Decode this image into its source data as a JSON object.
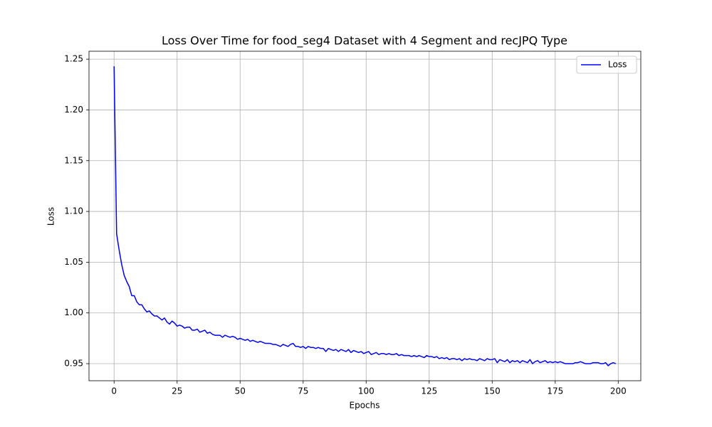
{
  "chart_data": {
    "type": "line",
    "title": "Loss Over Time for food_seg4 Dataset with 4 Segment and recJPQ Type",
    "xlabel": "Epochs",
    "ylabel": "Loss",
    "x": [
      0,
      1,
      2,
      3,
      4,
      5,
      6,
      7,
      8,
      9,
      10,
      11,
      12,
      13,
      14,
      15,
      16,
      17,
      18,
      19,
      20,
      21,
      22,
      23,
      24,
      25,
      26,
      27,
      28,
      29,
      30,
      31,
      32,
      33,
      34,
      35,
      36,
      37,
      38,
      39,
      40,
      41,
      42,
      43,
      44,
      45,
      46,
      47,
      48,
      49,
      50,
      51,
      52,
      53,
      54,
      55,
      56,
      57,
      58,
      59,
      60,
      61,
      62,
      63,
      64,
      65,
      66,
      67,
      68,
      69,
      70,
      71,
      72,
      73,
      74,
      75,
      76,
      77,
      78,
      79,
      80,
      81,
      82,
      83,
      84,
      85,
      86,
      87,
      88,
      89,
      90,
      91,
      92,
      93,
      94,
      95,
      96,
      97,
      98,
      99,
      100,
      101,
      102,
      103,
      104,
      105,
      106,
      107,
      108,
      109,
      110,
      111,
      112,
      113,
      114,
      115,
      116,
      117,
      118,
      119,
      120,
      121,
      122,
      123,
      124,
      125,
      126,
      127,
      128,
      129,
      130,
      131,
      132,
      133,
      134,
      135,
      136,
      137,
      138,
      139,
      140,
      141,
      142,
      143,
      144,
      145,
      146,
      147,
      148,
      149,
      150,
      151,
      152,
      153,
      154,
      155,
      156,
      157,
      158,
      159,
      160,
      161,
      162,
      163,
      164,
      165,
      166,
      167,
      168,
      169,
      170,
      171,
      172,
      173,
      174,
      175,
      176,
      177,
      178,
      179,
      180,
      181,
      182,
      183,
      184,
      185,
      186,
      187,
      188,
      189,
      190,
      191,
      192,
      193,
      194,
      195,
      196,
      197,
      198,
      199
    ],
    "series": [
      {
        "name": "Loss",
        "color": "#0000ff",
        "values": [
          1.243,
          1.078,
          1.062,
          1.048,
          1.037,
          1.031,
          1.026,
          1.017,
          1.017,
          1.011,
          1.008,
          1.008,
          1.004,
          1.001,
          1.002,
          0.999,
          0.997,
          0.997,
          0.995,
          0.993,
          0.995,
          0.991,
          0.989,
          0.992,
          0.99,
          0.987,
          0.988,
          0.987,
          0.985,
          0.986,
          0.986,
          0.983,
          0.983,
          0.984,
          0.981,
          0.982,
          0.983,
          0.98,
          0.981,
          0.979,
          0.978,
          0.978,
          0.978,
          0.976,
          0.978,
          0.977,
          0.976,
          0.977,
          0.976,
          0.974,
          0.975,
          0.974,
          0.973,
          0.974,
          0.972,
          0.973,
          0.972,
          0.971,
          0.972,
          0.971,
          0.97,
          0.97,
          0.97,
          0.969,
          0.969,
          0.968,
          0.967,
          0.969,
          0.968,
          0.967,
          0.969,
          0.97,
          0.967,
          0.967,
          0.966,
          0.967,
          0.965,
          0.967,
          0.966,
          0.966,
          0.965,
          0.966,
          0.965,
          0.965,
          0.962,
          0.965,
          0.964,
          0.963,
          0.964,
          0.962,
          0.964,
          0.963,
          0.962,
          0.964,
          0.961,
          0.963,
          0.962,
          0.961,
          0.962,
          0.96,
          0.961,
          0.962,
          0.959,
          0.96,
          0.961,
          0.959,
          0.96,
          0.96,
          0.959,
          0.96,
          0.959,
          0.959,
          0.96,
          0.958,
          0.959,
          0.958,
          0.958,
          0.958,
          0.957,
          0.958,
          0.957,
          0.958,
          0.957,
          0.956,
          0.958,
          0.957,
          0.957,
          0.956,
          0.957,
          0.955,
          0.956,
          0.955,
          0.956,
          0.954,
          0.955,
          0.955,
          0.954,
          0.955,
          0.953,
          0.955,
          0.954,
          0.955,
          0.954,
          0.954,
          0.953,
          0.955,
          0.954,
          0.953,
          0.955,
          0.954,
          0.954,
          0.955,
          0.951,
          0.954,
          0.953,
          0.952,
          0.954,
          0.951,
          0.953,
          0.952,
          0.953,
          0.951,
          0.953,
          0.952,
          0.951,
          0.954,
          0.95,
          0.952,
          0.953,
          0.951,
          0.952,
          0.953,
          0.951,
          0.952,
          0.951,
          0.952,
          0.951,
          0.952,
          0.951,
          0.95,
          0.95,
          0.95,
          0.95,
          0.951,
          0.951,
          0.952,
          0.951,
          0.95,
          0.95,
          0.95,
          0.951,
          0.951,
          0.951,
          0.95,
          0.95,
          0.951,
          0.948,
          0.95,
          0.951,
          0.95
        ]
      }
    ],
    "xlim": [
      -9.95,
      208.95
    ],
    "xticks": [
      0,
      25,
      50,
      75,
      100,
      125,
      150,
      175,
      200
    ],
    "ylim": [
      0.9332,
      1.2578
    ],
    "yticks": [
      0.95,
      {
        "value": 1,
        "label": "1.00"
      },
      1.05,
      {
        "value": 1.1,
        "label": "1.10"
      },
      1.15,
      {
        "value": 1.2,
        "label": "1.20"
      },
      1.25
    ],
    "grid": true,
    "legend": "upper right"
  }
}
